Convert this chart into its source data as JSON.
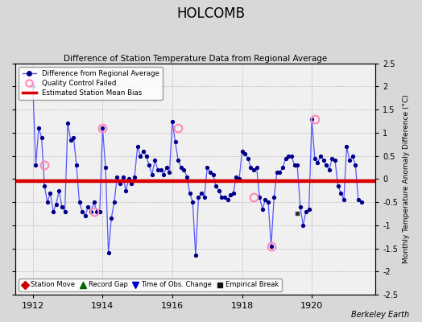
{
  "title": "HOLCOMB",
  "subtitle": "Difference of Station Temperature Data from Regional Average",
  "ylabel": "Monthly Temperature Anomaly Difference (°C)",
  "credit": "Berkeley Earth",
  "xlim": [
    1911.5,
    1921.83
  ],
  "ylim": [
    -2.5,
    2.5
  ],
  "xticks": [
    1912,
    1914,
    1916,
    1918,
    1920
  ],
  "yticks": [
    -2.5,
    -2.0,
    -1.5,
    -1.0,
    -0.5,
    0.0,
    0.5,
    1.0,
    1.5,
    2.0,
    2.5
  ],
  "bias_value": -0.05,
  "fig_bg": "#d8d8d8",
  "plot_bg": "#f0f0f0",
  "line_color": "#5555ff",
  "dot_color": "#000088",
  "bias_color": "#dd0000",
  "qc_color": "#ff88bb",
  "months": [
    1912.0,
    1912.083,
    1912.167,
    1912.25,
    1912.333,
    1912.417,
    1912.5,
    1912.583,
    1912.667,
    1912.75,
    1912.833,
    1912.917,
    1913.0,
    1913.083,
    1913.167,
    1913.25,
    1913.333,
    1913.417,
    1913.5,
    1913.583,
    1913.667,
    1913.75,
    1913.833,
    1913.917,
    1914.0,
    1914.083,
    1914.167,
    1914.25,
    1914.333,
    1914.417,
    1914.5,
    1914.583,
    1914.667,
    1914.75,
    1914.833,
    1914.917,
    1915.0,
    1915.083,
    1915.167,
    1915.25,
    1915.333,
    1915.417,
    1915.5,
    1915.583,
    1915.667,
    1915.75,
    1915.833,
    1915.917,
    1916.0,
    1916.083,
    1916.167,
    1916.25,
    1916.333,
    1916.417,
    1916.5,
    1916.583,
    1916.667,
    1916.75,
    1916.833,
    1916.917,
    1917.0,
    1917.083,
    1917.167,
    1917.25,
    1917.333,
    1917.417,
    1917.5,
    1917.583,
    1917.667,
    1917.75,
    1917.833,
    1917.917,
    1918.0,
    1918.083,
    1918.167,
    1918.25,
    1918.333,
    1918.417,
    1918.5,
    1918.583,
    1918.667,
    1918.75,
    1918.833,
    1918.917,
    1919.0,
    1919.083,
    1919.167,
    1919.25,
    1919.333,
    1919.417,
    1919.5,
    1919.583,
    1919.667,
    1919.75,
    1919.833,
    1919.917,
    1920.0,
    1920.083,
    1920.167,
    1920.25,
    1920.333,
    1920.417,
    1920.5,
    1920.583,
    1920.667,
    1920.75,
    1920.833,
    1920.917,
    1921.0,
    1921.083,
    1921.167,
    1921.25,
    1921.333,
    1921.417
  ],
  "values": [
    2.0,
    0.3,
    1.1,
    0.9,
    -0.15,
    -0.5,
    -0.3,
    -0.7,
    -0.55,
    -0.25,
    -0.6,
    -0.7,
    1.2,
    0.85,
    0.9,
    0.3,
    -0.5,
    -0.7,
    -0.8,
    -0.6,
    -0.7,
    -0.5,
    -0.7,
    -0.7,
    1.1,
    0.25,
    -1.6,
    -0.85,
    -0.5,
    0.05,
    -0.1,
    0.05,
    -0.25,
    0.0,
    -0.1,
    0.05,
    0.7,
    0.5,
    0.6,
    0.5,
    0.3,
    0.1,
    0.4,
    0.2,
    0.2,
    0.1,
    0.25,
    0.15,
    1.25,
    0.8,
    0.4,
    0.25,
    0.2,
    0.05,
    -0.3,
    -0.5,
    -1.65,
    -0.4,
    -0.3,
    -0.4,
    0.25,
    0.15,
    0.1,
    -0.15,
    -0.25,
    -0.4,
    -0.4,
    -0.45,
    -0.35,
    -0.3,
    0.05,
    0.0,
    0.6,
    0.55,
    0.45,
    0.25,
    0.2,
    0.25,
    -0.4,
    -0.65,
    -0.45,
    -0.5,
    -1.45,
    -0.4,
    0.15,
    0.15,
    0.25,
    0.45,
    0.5,
    0.5,
    0.3,
    0.3,
    -0.6,
    -1.0,
    -0.7,
    -0.65,
    1.3,
    0.45,
    0.35,
    0.5,
    0.4,
    0.3,
    0.2,
    0.45,
    0.4,
    -0.15,
    -0.3,
    -0.45,
    0.7,
    0.4,
    0.5,
    0.3,
    -0.45,
    -0.5
  ],
  "qc_times": [
    1912.333,
    1913.75,
    1914.0,
    1916.167,
    1918.333,
    1918.833,
    1920.083
  ],
  "qc_values": [
    0.3,
    -0.7,
    1.1,
    1.1,
    -0.4,
    -1.45,
    1.3
  ],
  "isolated_time": 1919.583,
  "isolated_value": -0.75
}
